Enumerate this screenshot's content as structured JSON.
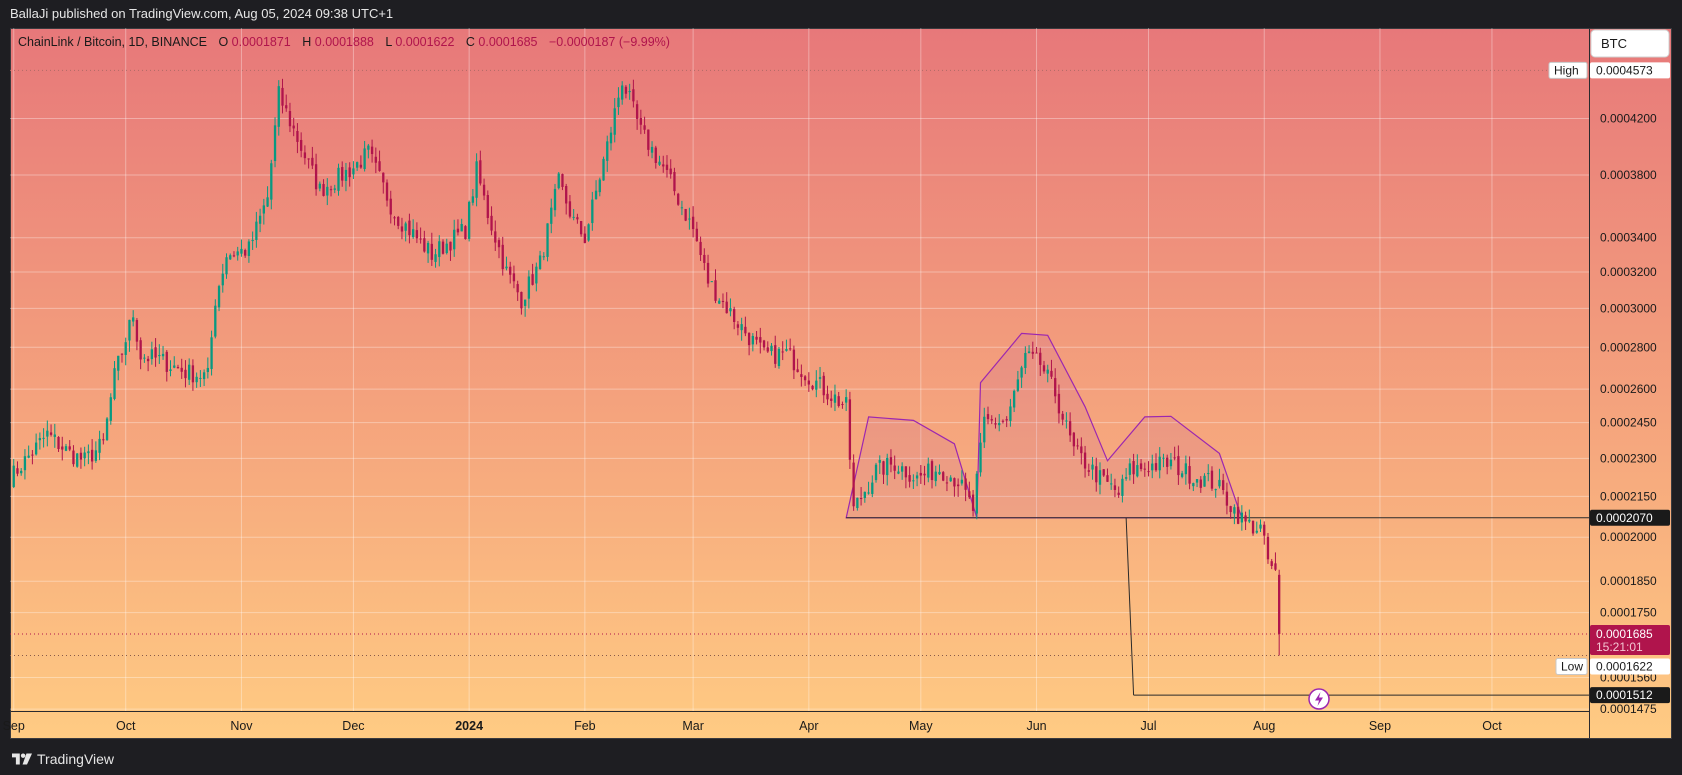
{
  "header": {
    "published_line": "BallaJi published on TradingView.com, Aug 05, 2024 09:38 UTC+1"
  },
  "footer": {
    "brand": "TradingView",
    "brand_icon": "tradingview-logo-icon"
  },
  "legend": {
    "symbol": "ChainLink / Bitcoin, 1D, BINANCE",
    "o_label": "O",
    "o_value": "0.0001871",
    "h_label": "H",
    "h_value": "0.0001888",
    "l_label": "L",
    "l_value": "0.0001622",
    "c_label": "C",
    "c_value": "0.0001685",
    "change": "−0.0000187 (−9.99%)"
  },
  "currency_button": "BTC",
  "colors": {
    "up": "#089981",
    "down": "#b0144c",
    "pattern": "#9c27b0",
    "bg_top": "#e7787a",
    "bg_bottom": "#ffcb83"
  },
  "chart_data": {
    "type": "candlestick",
    "title": "ChainLink / Bitcoin, 1D, BINANCE",
    "y_scale": "log",
    "ylim": [
      0.000147,
      0.000493
    ],
    "y_ticks": [
      "0.0004200",
      "0.0003800",
      "0.0003400",
      "0.0003200",
      "0.0003000",
      "0.0002800",
      "0.0002600",
      "0.0002450",
      "0.0002300",
      "0.0002150",
      "0.0002000",
      "0.0001850",
      "0.0001750",
      "0.0001560",
      "0.0001475"
    ],
    "x_ticks": [
      "Sep",
      "Oct",
      "Nov",
      "Dec",
      "2024",
      "Feb",
      "Mar",
      "Apr",
      "May",
      "Jun",
      "Jul",
      "Aug",
      "Sep",
      "Oct"
    ],
    "x_range": [
      "2023-08-31",
      "2024-10-27"
    ],
    "labels": {
      "high": {
        "label": "High",
        "value": "0.0004573"
      },
      "low": {
        "label": "Low",
        "value": "0.0001622"
      },
      "last": {
        "value": "0.0001685",
        "countdown": "15:21:01"
      },
      "neckline": {
        "value": "0.0002070"
      },
      "target": {
        "value": "0.0001512"
      }
    },
    "last_value": 0.0001685,
    "low_value": 0.0001622,
    "high_value": 0.0004573,
    "neckline_value": 0.000207,
    "target_value": 0.0001512,
    "neckline_from": "2024-04-11",
    "target_from": "2024-06-27",
    "projection_start": {
      "date": "2024-06-25",
      "value": 0.000207
    },
    "projection_end": {
      "date": "2024-06-27",
      "value": 0.0001512
    },
    "pattern": [
      {
        "date": "2024-04-11",
        "value": 0.000207
      },
      {
        "date": "2024-04-17",
        "value": 0.0002475
      },
      {
        "date": "2024-04-29",
        "value": 0.000246
      },
      {
        "date": "2024-05-10",
        "value": 0.000236
      },
      {
        "date": "2024-05-16",
        "value": 0.000207
      },
      {
        "date": "2024-05-17",
        "value": 0.000263
      },
      {
        "date": "2024-05-28",
        "value": 0.000287
      },
      {
        "date": "2024-06-04",
        "value": 0.000286
      },
      {
        "date": "2024-06-14",
        "value": 0.000252
      },
      {
        "date": "2024-06-20",
        "value": 0.000229
      },
      {
        "date": "2024-06-30",
        "value": 0.0002475
      },
      {
        "date": "2024-07-07",
        "value": 0.0002478
      },
      {
        "date": "2024-07-20",
        "value": 0.000232
      },
      {
        "date": "2024-07-26",
        "value": 0.000207
      }
    ],
    "path": [
      [
        "2023-08-31",
        0.000222
      ],
      [
        "2023-09-10",
        0.00024
      ],
      [
        "2023-09-16",
        0.000232
      ],
      [
        "2023-09-20",
        0.000229
      ],
      [
        "2023-09-25",
        0.000236
      ],
      [
        "2023-09-28",
        0.000266
      ],
      [
        "2023-10-03",
        0.000297
      ],
      [
        "2023-10-05",
        0.000276
      ],
      [
        "2023-10-10",
        0.000274
      ],
      [
        "2023-10-17",
        0.000268
      ],
      [
        "2023-10-23",
        0.000266
      ],
      [
        "2023-10-25",
        0.000305
      ],
      [
        "2023-10-28",
        0.00033
      ],
      [
        "2023-11-03",
        0.000333
      ],
      [
        "2023-11-08",
        0.000365
      ],
      [
        "2023-11-11",
        0.000438
      ],
      [
        "2023-11-16",
        0.000405
      ],
      [
        "2023-11-22",
        0.00037
      ],
      [
        "2023-12-01",
        0.000385
      ],
      [
        "2023-12-05",
        0.000395
      ],
      [
        "2023-12-12",
        0.000355
      ],
      [
        "2023-12-22",
        0.00033
      ],
      [
        "2023-12-31",
        0.000345
      ],
      [
        "2024-01-03",
        0.000383
      ],
      [
        "2024-01-06",
        0.000355
      ],
      [
        "2024-01-11",
        0.00032
      ],
      [
        "2024-01-15",
        0.000305
      ],
      [
        "2024-01-20",
        0.000325
      ],
      [
        "2024-01-25",
        0.000375
      ],
      [
        "2024-01-29",
        0.00035
      ],
      [
        "2024-02-01",
        0.00034
      ],
      [
        "2024-02-07",
        0.0004
      ],
      [
        "2024-02-11",
        0.00045
      ],
      [
        "2024-02-16",
        0.00041
      ],
      [
        "2024-02-22",
        0.000385
      ],
      [
        "2024-03-01",
        0.000345
      ],
      [
        "2024-03-05",
        0.000315
      ],
      [
        "2024-03-12",
        0.000295
      ],
      [
        "2024-03-20",
        0.000276
      ],
      [
        "2024-03-26",
        0.000277
      ],
      [
        "2024-04-01",
        0.000266
      ],
      [
        "2024-04-05",
        0.00026
      ],
      [
        "2024-04-11",
        0.000252
      ],
      [
        "2024-04-13",
        0.00021
      ],
      [
        "2024-04-19",
        0.000225
      ],
      [
        "2024-04-24",
        0.000228
      ],
      [
        "2024-04-30",
        0.000222
      ],
      [
        "2024-05-06",
        0.000226
      ],
      [
        "2024-05-11",
        0.000221
      ],
      [
        "2024-05-15",
        0.00021
      ],
      [
        "2024-05-18",
        0.000245
      ],
      [
        "2024-05-24",
        0.000246
      ],
      [
        "2024-05-29",
        0.000275
      ],
      [
        "2024-06-02",
        0.000272
      ],
      [
        "2024-06-06",
        0.000258
      ],
      [
        "2024-06-11",
        0.000233
      ],
      [
        "2024-06-18",
        0.000222
      ],
      [
        "2024-06-23",
        0.000216
      ],
      [
        "2024-06-26",
        0.000225
      ],
      [
        "2024-07-01",
        0.000227
      ],
      [
        "2024-07-07",
        0.000228
      ],
      [
        "2024-07-13",
        0.000223
      ],
      [
        "2024-07-19",
        0.00022
      ],
      [
        "2024-07-24",
        0.00021
      ],
      [
        "2024-07-27",
        0.000205
      ],
      [
        "2024-07-31",
        0.000203
      ],
      [
        "2024-08-02",
        0.000192
      ],
      [
        "2024-08-04",
        0.000187
      ],
      [
        "2024-08-05",
        0.0001685
      ]
    ]
  }
}
